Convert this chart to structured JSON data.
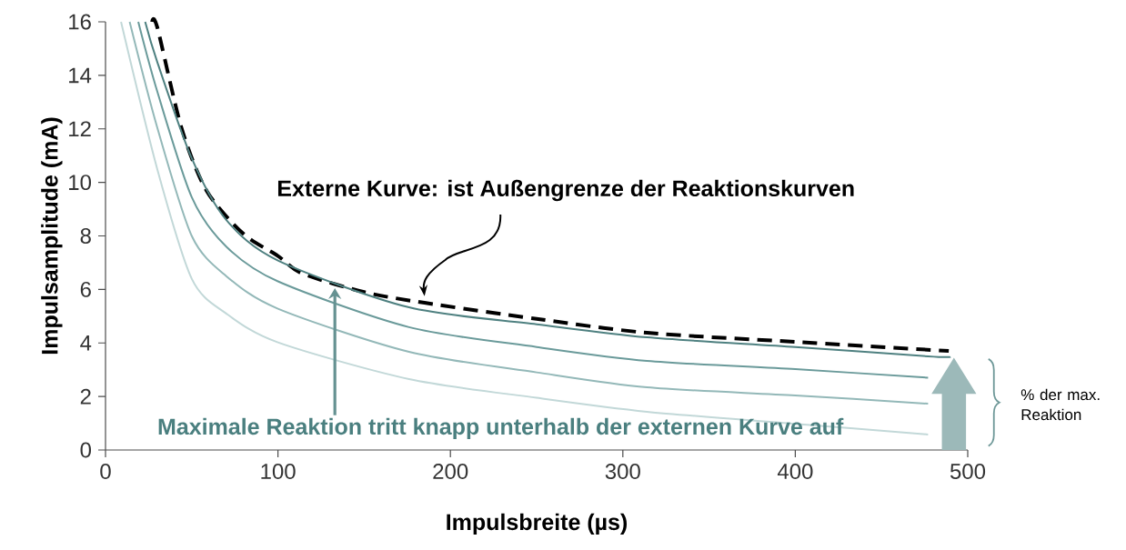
{
  "chart_data": {
    "type": "line",
    "xlabel": "Impulsbreite (µs)",
    "ylabel": "Impulsamplitude (mA)",
    "xlim": [
      0,
      500
    ],
    "ylim": [
      0,
      16
    ],
    "xticks": [
      0,
      100,
      200,
      300,
      400,
      500
    ],
    "yticks": [
      0,
      2,
      4,
      6,
      8,
      10,
      12,
      14,
      16
    ],
    "series": [
      {
        "color": "#000000",
        "line_style": "dashed",
        "x": [
          27,
          30,
          44,
          58.5,
          79.6,
          100,
          114,
          150,
          185,
          250,
          314,
          400,
          489
        ],
        "values": [
          16,
          15.8,
          12.05,
          9.7,
          8.1,
          7.25,
          6.6,
          5.9,
          5.5,
          4.9,
          4.38,
          4.04,
          3.7
        ]
      },
      {
        "color": "#4e8080",
        "line_style": "solid",
        "x": [
          23,
          30,
          50,
          70,
          100,
          176,
          250,
          314,
          400,
          477,
          490
        ],
        "values": [
          16,
          14.5,
          10.9,
          8.6,
          7.08,
          5.33,
          4.7,
          4.21,
          3.85,
          3.5,
          3.48
        ]
      },
      {
        "color": "#6a9a9a",
        "line_style": "solid",
        "x": [
          19,
          30,
          50,
          70,
          100,
          176,
          250,
          314,
          400,
          477
        ],
        "values": [
          16,
          13.4,
          9.45,
          7.6,
          6.3,
          4.59,
          3.85,
          3.33,
          3.02,
          2.7
        ]
      },
      {
        "color": "#93b8b8",
        "line_style": "solid",
        "x": [
          14,
          30,
          50,
          70,
          100,
          176,
          250,
          314,
          400,
          477
        ],
        "values": [
          16,
          12.05,
          8.0,
          6.5,
          5.28,
          3.67,
          2.9,
          2.34,
          2.04,
          1.73
        ]
      },
      {
        "color": "#c2d8d8",
        "line_style": "solid",
        "x": [
          9,
          30,
          50,
          70,
          100,
          176,
          250,
          314,
          400,
          477
        ],
        "values": [
          16,
          10.5,
          6.4,
          5.1,
          4.02,
          2.65,
          1.95,
          1.43,
          0.98,
          0.58
        ]
      }
    ],
    "annotations": [
      "Externe Kurve: ist Außengrenze der Reaktionskurven",
      "Maximale Reaktion tritt knapp unterhalb der externen Kurve auf",
      "% der max. Reaktion"
    ]
  }
}
